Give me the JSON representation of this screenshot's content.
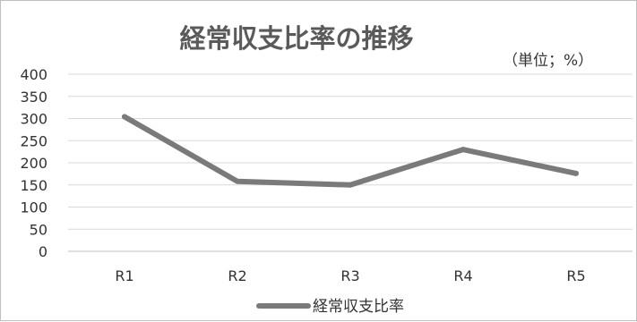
{
  "chart_data": {
    "type": "line",
    "title": "経常収支比率の推移",
    "unit_note": "（単位；%）",
    "categories": [
      "R1",
      "R2",
      "R3",
      "R4",
      "R5"
    ],
    "series": [
      {
        "name": "経常収支比率",
        "values": [
          304,
          158,
          150,
          230,
          176
        ],
        "color": "#7a7a7a"
      }
    ],
    "ylim": [
      0,
      400
    ],
    "yticks": [
      0,
      50,
      100,
      150,
      200,
      250,
      300,
      350,
      400
    ],
    "grid": true,
    "legend": "bottom"
  }
}
